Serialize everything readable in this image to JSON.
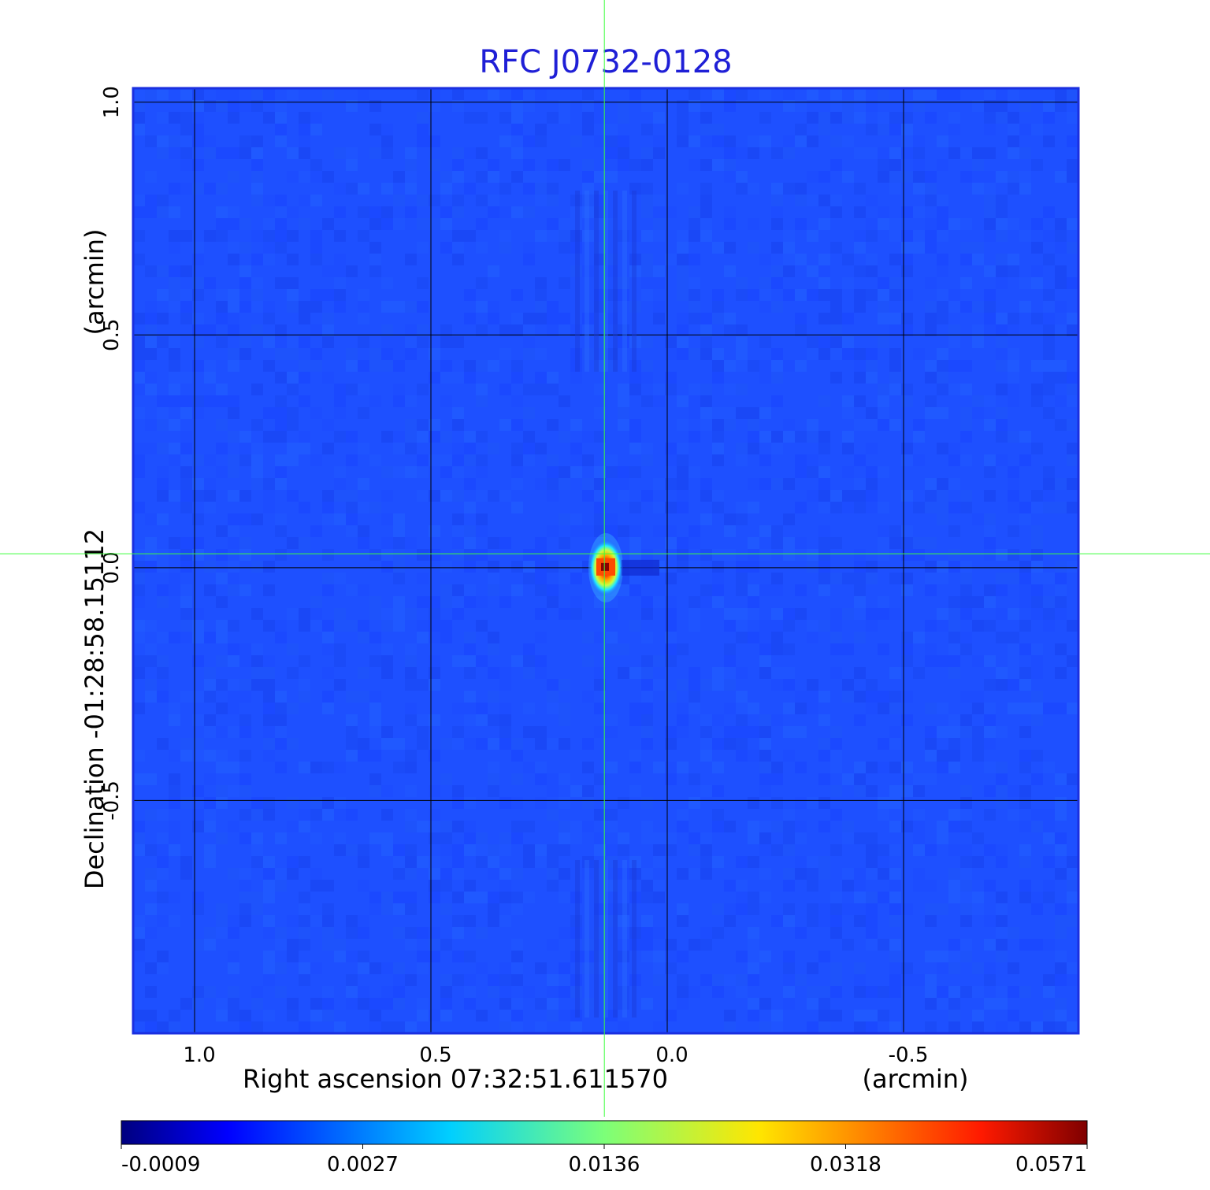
{
  "chart_data": {
    "type": "heatmap",
    "title": "RFC J0732-0128",
    "xlabel": "Right ascension  07:32:51.611570",
    "xunit": "(arcmin)",
    "ylabel": "Declination  -01:28:58.15112",
    "yunit": "(arcmin)",
    "x_ticks": [
      {
        "value": 1.0,
        "label": "1.0"
      },
      {
        "value": 0.5,
        "label": "0.5"
      },
      {
        "value": 0.0,
        "label": "0.0"
      },
      {
        "value": -0.5,
        "label": "-0.5"
      }
    ],
    "y_ticks": [
      {
        "value": 1.0,
        "label": "1.0"
      },
      {
        "value": 0.5,
        "label": "0.5"
      },
      {
        "value": 0.0,
        "label": "0.0"
      },
      {
        "value": -0.5,
        "label": "-0.5"
      }
    ],
    "xlim": [
      1.13,
      -0.87
    ],
    "ylim": [
      -1.0,
      1.03
    ],
    "grid": true,
    "colormap": "jet",
    "colorbar_ticks": [
      "-0.0009",
      "0.0027",
      "0.0136",
      "0.0318",
      "0.0571"
    ],
    "peak": {
      "x": 0.13,
      "y": 0.0,
      "value": 0.0571
    },
    "crosshair": {
      "x": 0.133,
      "y": 0.03
    }
  }
}
